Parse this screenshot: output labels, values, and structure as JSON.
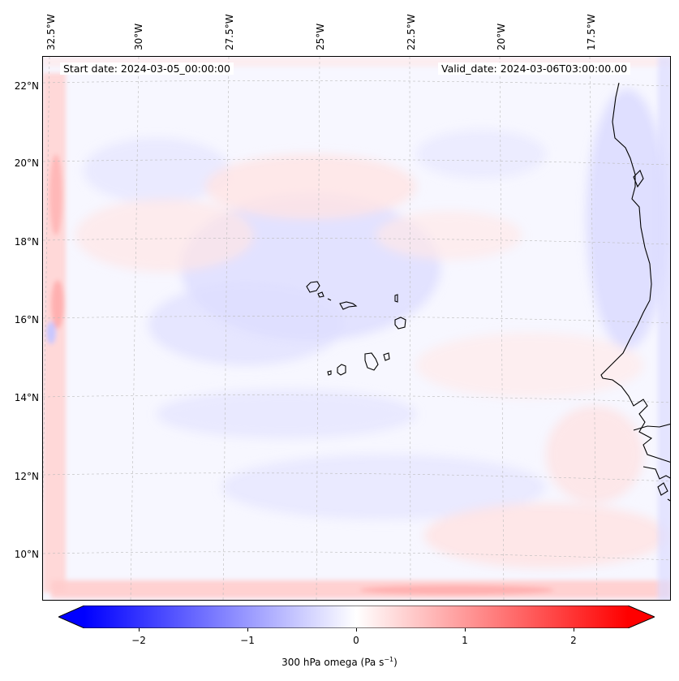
{
  "map": {
    "start_date": "Start date: 2024-03-05_00:00:00",
    "valid_date": "Valid_date: 2024-03-06T03:00:00.00",
    "lon_labels": [
      "32.5°W",
      "30°W",
      "27.5°W",
      "25°W",
      "22.5°W",
      "20°W",
      "17.5°W"
    ],
    "lat_labels": [
      "22°N",
      "20°N",
      "18°N",
      "16°N",
      "14°N",
      "12°N",
      "10°N"
    ],
    "colors": {
      "negative": "#0000ff",
      "neutral": "#ffffff",
      "positive": "#ff0000",
      "coast": "#000000",
      "grid": "#bbbbbb"
    }
  },
  "colorbar": {
    "ticks": [
      "−2",
      "−1",
      "0",
      "1",
      "2"
    ],
    "label_prefix": "300 hPa omega (Pa s",
    "label_exp": "−1",
    "label_suffix": ")"
  },
  "chart_data": {
    "type": "heatmap",
    "title": "300 hPa omega (Pa s^-1)",
    "variable": "omega",
    "level_hPa": 300,
    "units": "Pa s^-1",
    "colorbar_range": [
      -2.7,
      2.7
    ],
    "colorbar_ticks": [
      -2,
      -1,
      0,
      1,
      2
    ],
    "lon_range_deg": [
      -33,
      -14
    ],
    "lat_range_deg": [
      9,
      22.7
    ],
    "field_description": "Mostly weak omega near 0 (-0.3 to 0.3), with positive values along boundaries",
    "start_date": "2024-03-05_00:00:00",
    "valid_date": "2024-03-06T03:00:00.00"
  }
}
